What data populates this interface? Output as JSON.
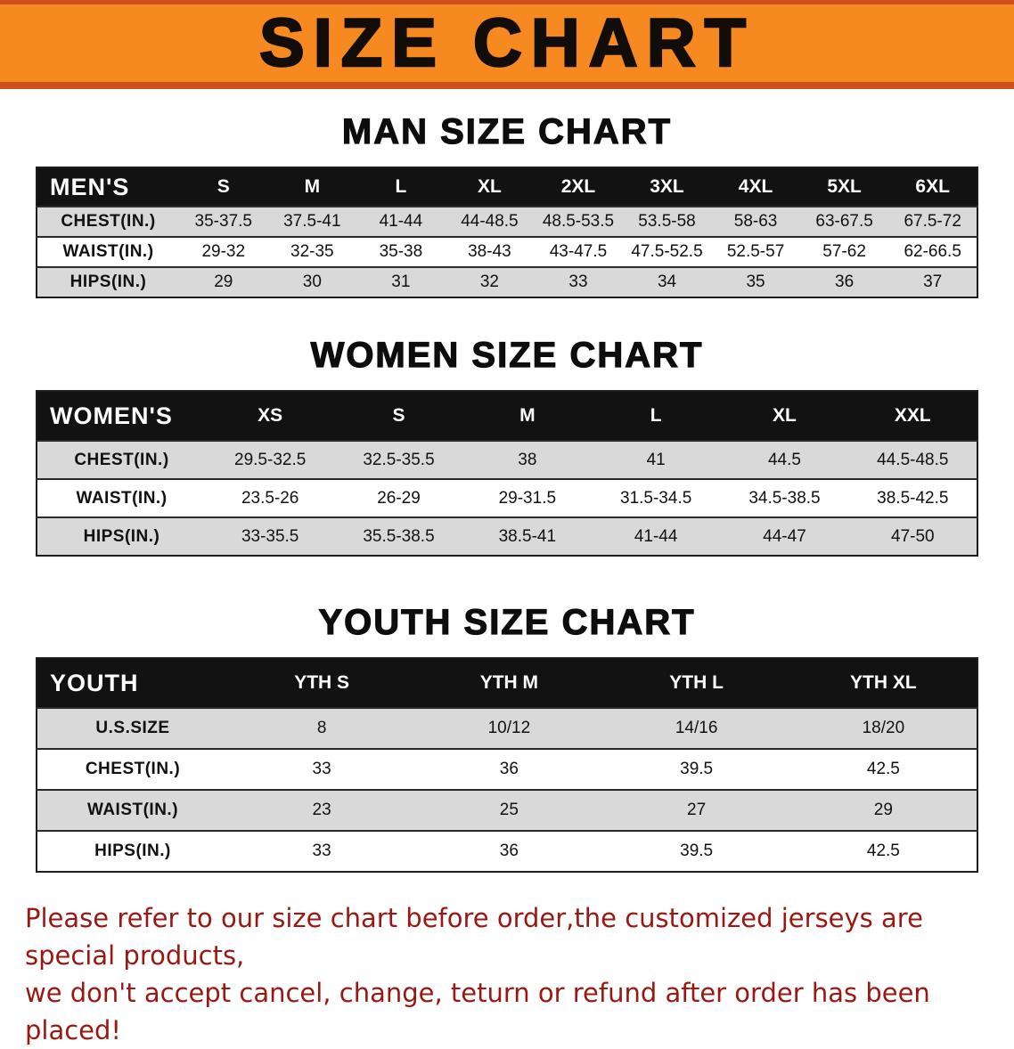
{
  "banner": {
    "title": "SIZE CHART"
  },
  "colors": {
    "banner_bg": "#f6891f",
    "banner_border": "#d04f1e",
    "table_header_bg": "#121212",
    "row_alt_gray": "#d9d9d9",
    "note_red": "#9b1812"
  },
  "sections": [
    {
      "id": "men",
      "heading": "MAN SIZE CHART",
      "table": {
        "corner": "MEN'S",
        "columns": [
          "S",
          "M",
          "L",
          "XL",
          "2XL",
          "3XL",
          "4XL",
          "5XL",
          "6XL"
        ],
        "rows": [
          {
            "label": "CHEST(IN.)",
            "values": [
              "35-37.5",
              "37.5-41",
              "41-44",
              "44-48.5",
              "48.5-53.5",
              "53.5-58",
              "58-63",
              "63-67.5",
              "67.5-72"
            ]
          },
          {
            "label": "WAIST(IN.)",
            "values": [
              "29-32",
              "32-35",
              "35-38",
              "38-43",
              "43-47.5",
              "47.5-52.5",
              "52.5-57",
              "57-62",
              "62-66.5"
            ]
          },
          {
            "label": "HIPS(IN.)",
            "values": [
              "29",
              "30",
              "31",
              "32",
              "33",
              "34",
              "35",
              "36",
              "37"
            ]
          }
        ]
      }
    },
    {
      "id": "women",
      "heading": "WOMEN SIZE CHART",
      "table": {
        "corner": "WOMEN'S",
        "columns": [
          "XS",
          "S",
          "M",
          "L",
          "XL",
          "XXL"
        ],
        "rows": [
          {
            "label": "CHEST(IN.)",
            "values": [
              "29.5-32.5",
              "32.5-35.5",
              "38",
              "41",
              "44.5",
              "44.5-48.5"
            ]
          },
          {
            "label": "WAIST(IN.)",
            "values": [
              "23.5-26",
              "26-29",
              "29-31.5",
              "31.5-34.5",
              "34.5-38.5",
              "38.5-42.5"
            ]
          },
          {
            "label": "HIPS(IN.)",
            "values": [
              "33-35.5",
              "35.5-38.5",
              "38.5-41",
              "41-44",
              "44-47",
              "47-50"
            ]
          }
        ]
      }
    },
    {
      "id": "youth",
      "heading": "YOUTH SIZE CHART",
      "table": {
        "corner": "YOUTH",
        "columns": [
          "YTH S",
          "YTH M",
          "YTH L",
          "YTH XL"
        ],
        "rows": [
          {
            "label": "U.S.SIZE",
            "values": [
              "8",
              "10/12",
              "14/16",
              "18/20"
            ]
          },
          {
            "label": "CHEST(IN.)",
            "values": [
              "33",
              "36",
              "39.5",
              "42.5"
            ]
          },
          {
            "label": "WAIST(IN.)",
            "values": [
              "23",
              "25",
              "27",
              "29"
            ]
          },
          {
            "label": "HIPS(IN.)",
            "values": [
              "33",
              "36",
              "39.5",
              "42.5"
            ]
          }
        ]
      }
    }
  ],
  "note": {
    "line1": "Please refer to our size chart before order,the customized jerseys are special products,",
    "line2": "we don't accept cancel, change, teturn or refund after order has been placed!"
  }
}
